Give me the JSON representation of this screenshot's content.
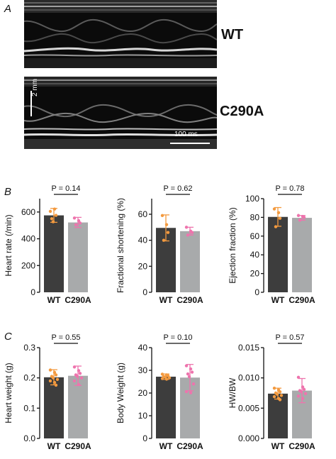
{
  "panels": {
    "a": "A",
    "b": "B",
    "c": "C"
  },
  "echo": {
    "wt_label": "WT",
    "c290a_label": "C290A",
    "scale_y_label": "2 mm",
    "scale_x_label": "100 ms"
  },
  "colors": {
    "wt_bar": "#3d3d3d",
    "c290a_bar": "#a8aaab",
    "wt_points": "#f39a3f",
    "c290a_points": "#ee74ad",
    "wt_error": "#f39a3f",
    "c290a_error": "#ee74ad"
  },
  "chart_data": [
    {
      "id": "heart-rate",
      "type": "bar",
      "categories": [
        "WT",
        "C290A"
      ],
      "values": [
        575,
        522
      ],
      "errors": [
        52,
        38
      ],
      "points": [
        [
          605,
          622,
          575,
          550,
          527
        ],
        [
          555,
          535,
          518,
          505
        ]
      ],
      "ylabel": "Heart rate (/min)",
      "ylim": [
        0,
        700
      ],
      "yticks": [
        0,
        200,
        400,
        600
      ],
      "ytick_labels": [
        "0",
        "200",
        "400",
        "600"
      ],
      "pvalue": "P = 0.14"
    },
    {
      "id": "fractional-shortening",
      "type": "bar",
      "categories": [
        "WT",
        "C290A"
      ],
      "values": [
        49.5,
        47
      ],
      "errors": [
        10,
        3
      ],
      "points": [
        [
          59,
          52,
          46,
          40
        ],
        [
          50,
          47,
          46,
          44
        ]
      ],
      "ylabel": "Fractional shortening (%)",
      "ylim": [
        0,
        72
      ],
      "yticks": [
        0,
        20,
        40,
        60
      ],
      "ytick_labels": [
        "0",
        "20",
        "40",
        "60"
      ],
      "pvalue": "P = 0.62"
    },
    {
      "id": "ejection-fraction",
      "type": "bar",
      "categories": [
        "WT",
        "C290A"
      ],
      "values": [
        80.5,
        79.5
      ],
      "errors": [
        10,
        2.5
      ],
      "points": [
        [
          89,
          85,
          79,
          70
        ],
        [
          82,
          81,
          80,
          77
        ]
      ],
      "ylabel": "Ejection fraction (%)",
      "ylim": [
        0,
        100
      ],
      "yticks": [
        0,
        20,
        40,
        60,
        80,
        100
      ],
      "ytick_labels": [
        "0",
        "20",
        "40",
        "60",
        "80",
        "100"
      ],
      "pvalue": "P = 0.78"
    },
    {
      "id": "heart-weight",
      "type": "bar",
      "categories": [
        "WT",
        "C290A"
      ],
      "values": [
        0.202,
        0.207
      ],
      "errors": [
        0.025,
        0.032
      ],
      "points": [
        [
          0.226,
          0.218,
          0.21,
          0.205,
          0.2,
          0.195,
          0.19,
          0.185,
          0.176
        ],
        [
          0.236,
          0.224,
          0.215,
          0.21,
          0.205,
          0.2,
          0.19,
          0.178
        ]
      ],
      "ylabel": "Heart weight (g)",
      "ylim": [
        0,
        0.3
      ],
      "yticks": [
        0,
        0.1,
        0.2,
        0.3
      ],
      "ytick_labels": [
        "0.0",
        "0.1",
        "0.2",
        "0.3"
      ],
      "pvalue": "P = 0.55"
    },
    {
      "id": "body-weight",
      "type": "bar",
      "categories": [
        "WT",
        "C290A"
      ],
      "values": [
        27.2,
        26.8
      ],
      "errors": [
        1.2,
        5.8
      ],
      "points": [
        [
          28.3,
          28.0,
          27.6,
          27.3,
          27.0,
          26.7,
          26.4,
          26.1
        ],
        [
          32.0,
          30.6,
          29.2,
          28.4,
          27.2,
          24.0,
          20.6,
          20.1
        ]
      ],
      "ylabel": "Body Weight (g)",
      "ylim": [
        0,
        40
      ],
      "yticks": [
        0,
        10,
        20,
        30,
        40
      ],
      "ytick_labels": [
        "0",
        "10",
        "20",
        "30",
        "40"
      ],
      "pvalue": "P = 0.10"
    },
    {
      "id": "hw-bw",
      "type": "bar",
      "categories": [
        "WT",
        "C290A"
      ],
      "values": [
        0.0074,
        0.0079
      ],
      "errors": [
        0.0009,
        0.002
      ],
      "points": [
        [
          0.0083,
          0.008,
          0.0077,
          0.0075,
          0.0073,
          0.0071,
          0.0069,
          0.0066,
          0.0064
        ],
        [
          0.0101,
          0.0085,
          0.0081,
          0.0079,
          0.0077,
          0.0074,
          0.007,
          0.0066
        ]
      ],
      "ylabel": "HW/BW",
      "ylim": [
        0,
        0.015
      ],
      "yticks": [
        0,
        0.005,
        0.01,
        0.015
      ],
      "ytick_labels": [
        "0.000",
        "0.005",
        "0.010",
        "0.015"
      ],
      "pvalue": "P = 0.57"
    }
  ]
}
